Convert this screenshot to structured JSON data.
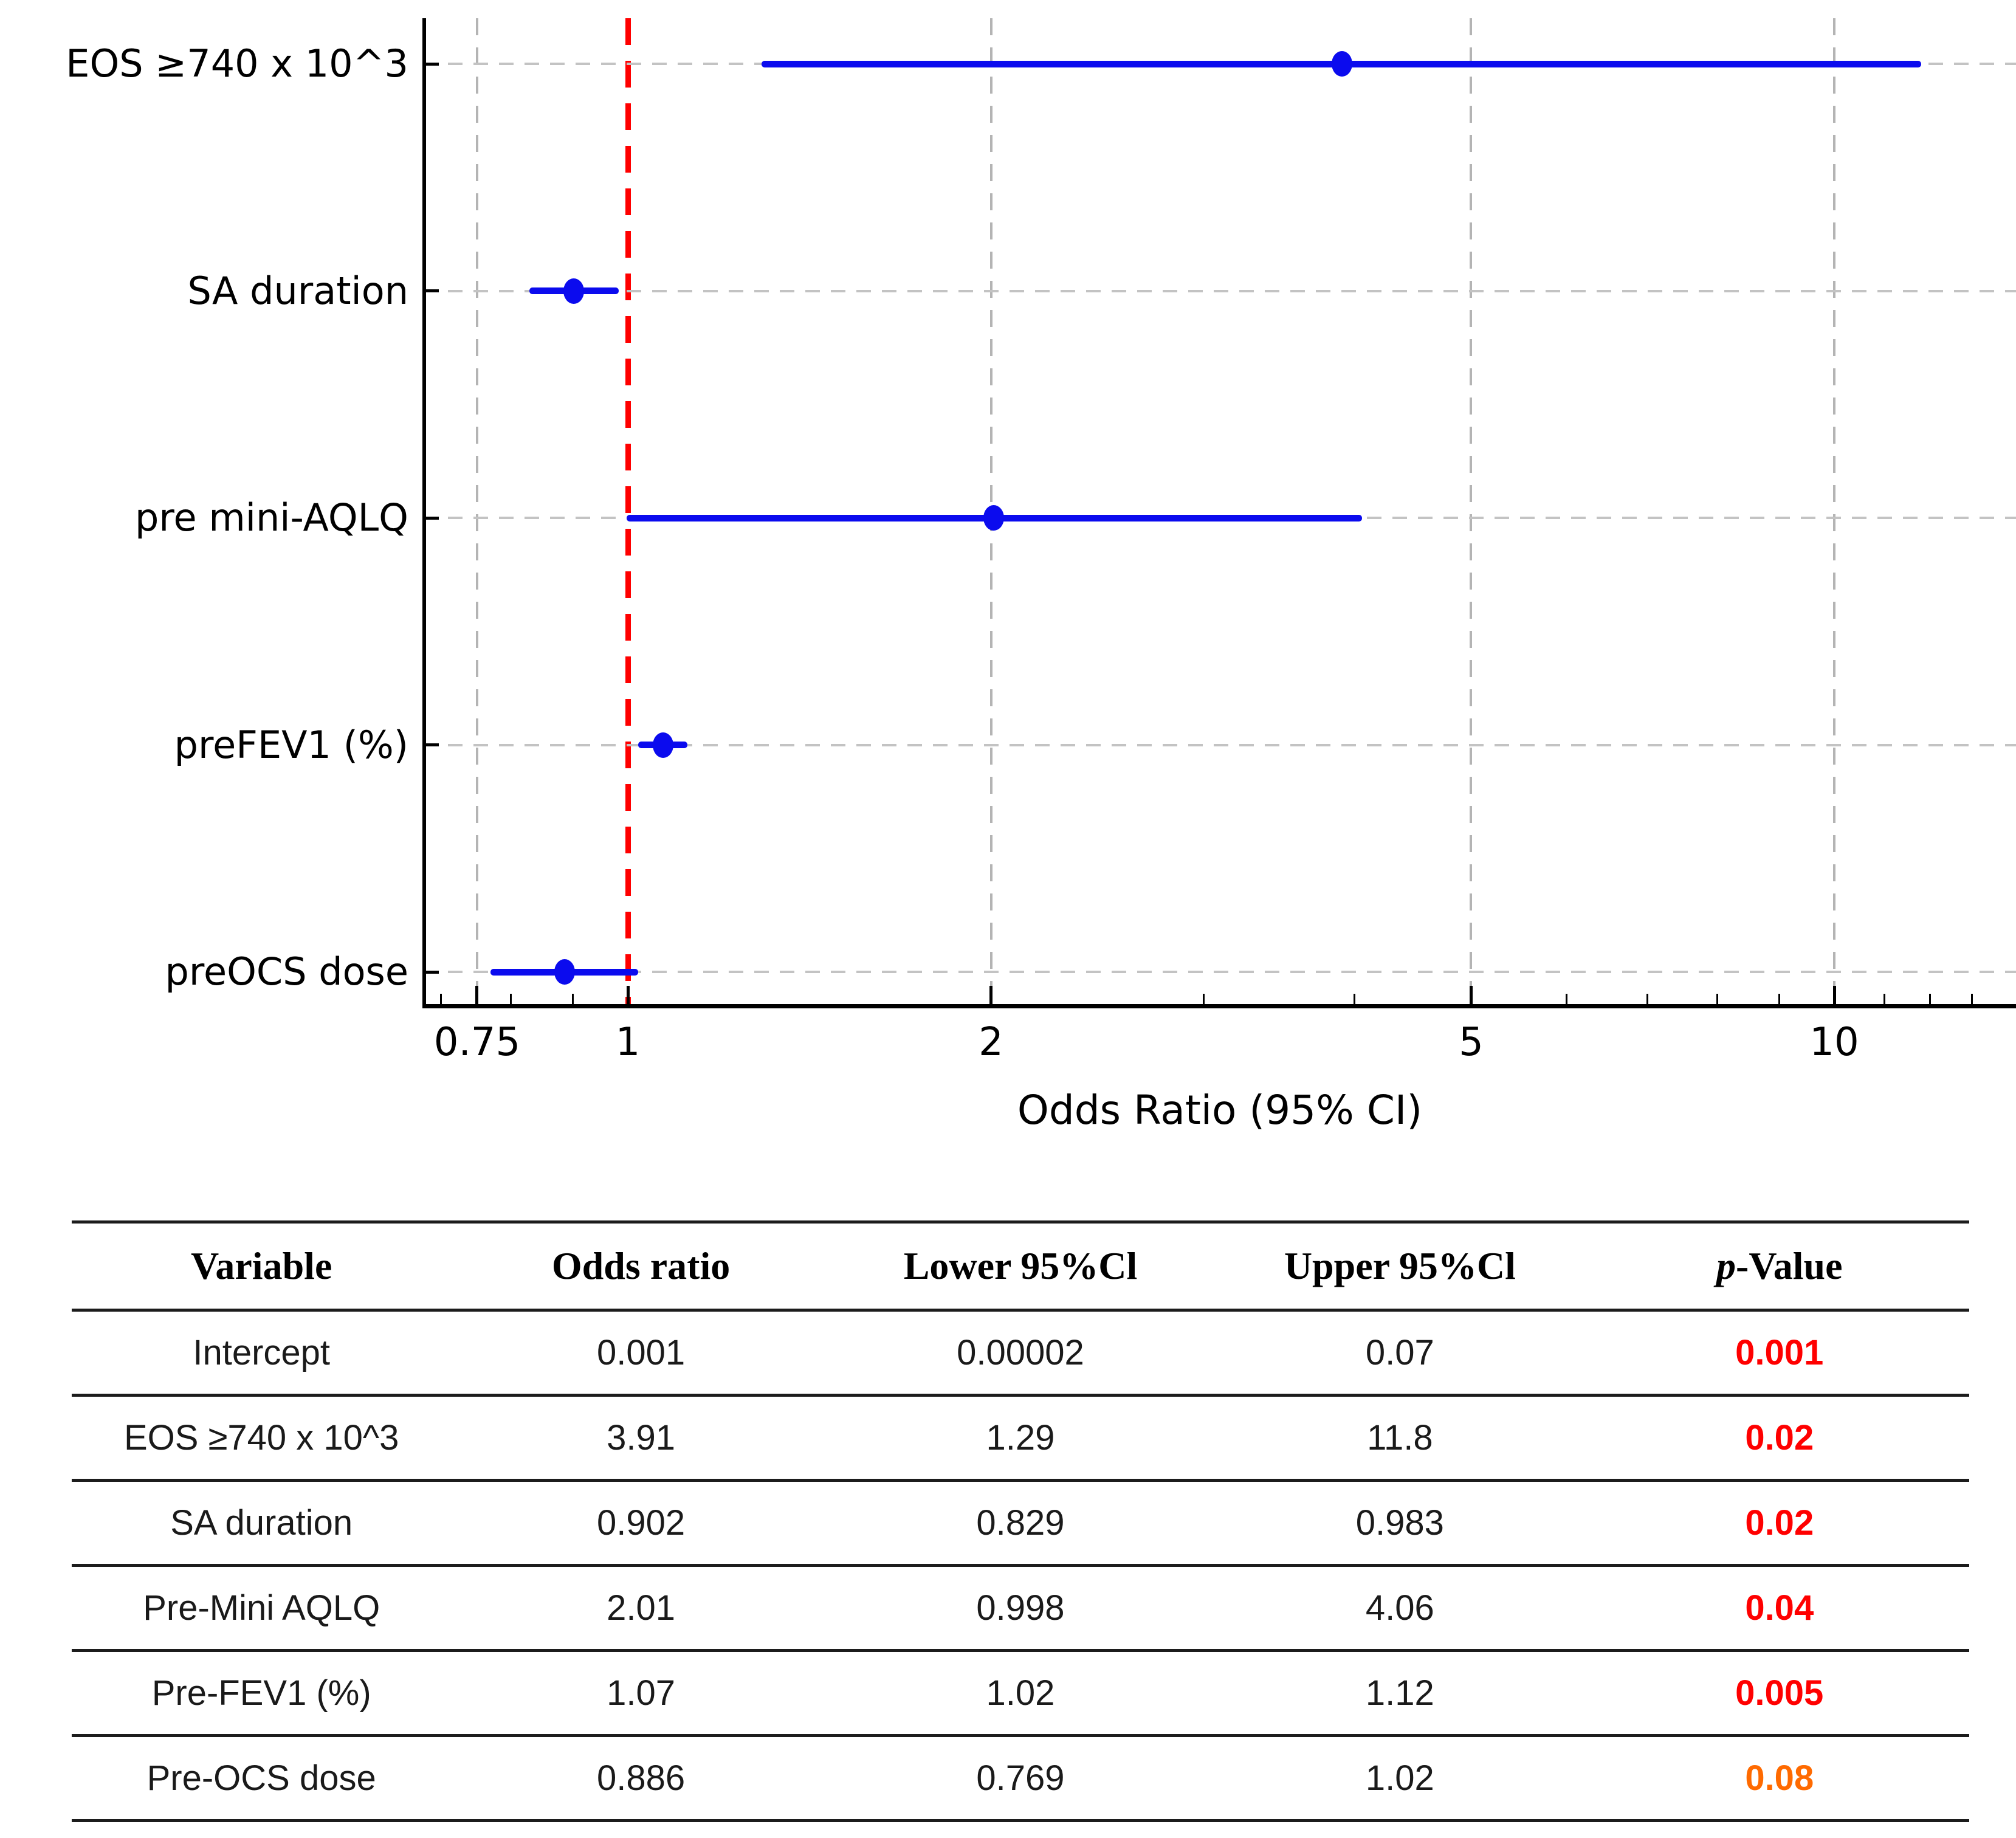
{
  "chart_data": [
    {
      "type": "scatter",
      "subtype": "forest-plot",
      "xlabel": "Odds Ratio (95% CI)",
      "x_scale": "log",
      "xlim": [
        0.68,
        13.5
      ],
      "x_ticks": [
        0.75,
        1,
        2,
        5,
        10
      ],
      "x_tick_labels": [
        "0.75",
        "1",
        "2",
        "5",
        "10"
      ],
      "x_minor_ticks": [
        0.7,
        0.8,
        0.9,
        3,
        4,
        6,
        7,
        8,
        9,
        11,
        12,
        13
      ],
      "x_gridlines": [
        0.75,
        2,
        5,
        10
      ],
      "reference_line_x": 1,
      "grid": true,
      "categories": [
        "EOS ≥740 x 10^3",
        "SA duration",
        "pre mini-AQLQ",
        "preFEV1 (%)",
        "preOCS dose"
      ],
      "series": [
        {
          "name": "Odds Ratio (95% CI)",
          "points": [
            {
              "label": "EOS ≥740 x 10^3",
              "or": 3.91,
              "lower": 1.29,
              "upper": 11.8
            },
            {
              "label": "SA duration",
              "or": 0.902,
              "lower": 0.829,
              "upper": 0.983
            },
            {
              "label": "pre mini-AQLQ",
              "or": 2.01,
              "lower": 0.998,
              "upper": 4.06
            },
            {
              "label": "preFEV1 (%)",
              "or": 1.07,
              "lower": 1.02,
              "upper": 1.12
            },
            {
              "label": "preOCS dose",
              "or": 0.886,
              "lower": 0.769,
              "upper": 1.02
            }
          ]
        }
      ],
      "colors": {
        "ci": "#0b0bee",
        "marker": "#0b0bee",
        "reference": "#ff0000",
        "grid": "#b4b4b4",
        "text": "#000000"
      }
    },
    {
      "type": "table",
      "headers": [
        {
          "label": "Variable",
          "italic_first_char": false
        },
        {
          "label": "Odds ratio",
          "italic_first_char": false
        },
        {
          "label": "Lower 95%Cl",
          "italic_first_char": false
        },
        {
          "label": "Upper 95%Cl",
          "italic_first_char": false
        },
        {
          "label": "p-Value",
          "italic_first_char": true
        }
      ],
      "rows": [
        {
          "variable": "Intercept",
          "odds_ratio": "0.001",
          "lower": "0.00002",
          "upper": "0.07",
          "p_value": "0.001",
          "p_color": "#ff0000"
        },
        {
          "variable": "EOS ≥740 x 10^3",
          "odds_ratio": "3.91",
          "lower": "1.29",
          "upper": "11.8",
          "p_value": "0.02",
          "p_color": "#ff0000"
        },
        {
          "variable": "SA duration",
          "odds_ratio": "0.902",
          "lower": "0.829",
          "upper": "0.983",
          "p_value": "0.02",
          "p_color": "#ff0000"
        },
        {
          "variable": "Pre-Mini AQLQ",
          "odds_ratio": "2.01",
          "lower": "0.998",
          "upper": "4.06",
          "p_value": "0.04",
          "p_color": "#ff0000"
        },
        {
          "variable": "Pre-FEV1 (%)",
          "odds_ratio": "1.07",
          "lower": "1.02",
          "upper": "1.12",
          "p_value": "0.005",
          "p_color": "#ff0000"
        },
        {
          "variable": "Pre-OCS dose",
          "odds_ratio": "0.886",
          "lower": "0.769",
          "upper": "1.02",
          "p_value": "0.08",
          "p_color": "#ff6a00"
        }
      ],
      "p_value_colors": {
        "significant": "#ff0000",
        "marginal": "#ff6a00"
      }
    }
  ]
}
